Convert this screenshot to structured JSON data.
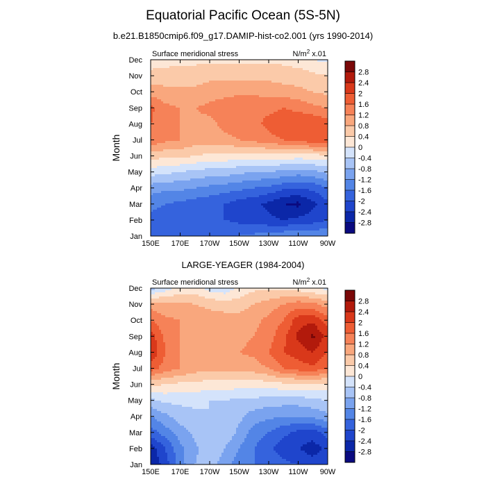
{
  "page": {
    "title": "Equatorial Pacific Ocean (5S-5N)"
  },
  "colorbar": {
    "levels": [
      -2.8,
      -2.4,
      -2,
      -1.6,
      -1.2,
      -0.8,
      -0.4,
      0,
      0.4,
      0.8,
      1.2,
      1.6,
      2,
      2.4,
      2.8
    ],
    "labels": [
      "-2.8",
      "-2.4",
      "-2",
      "-1.6",
      "-1.2",
      "-0.8",
      "-0.4",
      "0",
      "0.4",
      "0.8",
      "1.2",
      "1.6",
      "2",
      "2.4",
      "2.8"
    ],
    "colors": [
      "#0a0a80",
      "#0b27a8",
      "#1f45cc",
      "#3563dd",
      "#5385e6",
      "#7aa3ef",
      "#a8c4f6",
      "#d4e3fb",
      "#fde7d6",
      "#fbcaa9",
      "#f9a77d",
      "#f68258",
      "#ee5d34",
      "#d9381a",
      "#b21a0c",
      "#7a0808"
    ]
  },
  "chart_data": [
    {
      "type": "heatmap",
      "subtitle": "b.e21.B1850cmip6.f09_g17.DAMIP-hist-co2.001 (yrs 1990-2014)",
      "left_label": "Surface meridional stress",
      "right_label_main": "N/m",
      "right_label_sup": "2",
      "right_label_tail": " x.01",
      "ylabel": "Month",
      "x_ticks": [
        "150E",
        "170E",
        "170W",
        "150W",
        "130W",
        "110W",
        "90W"
      ],
      "y_ticks": [
        "Jan",
        "Feb",
        "Mar",
        "Apr",
        "May",
        "Jun",
        "Jul",
        "Aug",
        "Sep",
        "Oct",
        "Nov",
        "Dec"
      ],
      "grid": [
        [
          -1.6,
          -1.7,
          -1.7,
          -1.7,
          -1.6,
          -1.6,
          -1.6,
          -1.5,
          -1.4,
          -1.3,
          -1.2,
          -1.2,
          -1.3
        ],
        [
          -1.7,
          -1.8,
          -1.9,
          -1.9,
          -1.9,
          -2.0,
          -2.1,
          -2.2,
          -2.3,
          -2.4,
          -2.3,
          -2.2,
          -2.0
        ],
        [
          -1.5,
          -1.6,
          -1.7,
          -1.8,
          -1.9,
          -2.0,
          -2.2,
          -2.3,
          -2.5,
          -2.8,
          -2.9,
          -2.5,
          -2.1
        ],
        [
          -1.0,
          -1.1,
          -1.1,
          -1.2,
          -1.3,
          -1.4,
          -1.5,
          -1.6,
          -1.7,
          -1.9,
          -2.0,
          -1.9,
          -1.6
        ],
        [
          -0.2,
          -0.3,
          -0.4,
          -0.5,
          -0.6,
          -0.6,
          -0.7,
          -0.8,
          -0.8,
          -0.9,
          -1.0,
          -0.9,
          -0.7
        ],
        [
          0.6,
          0.5,
          0.5,
          0.4,
          0.3,
          0.3,
          0.2,
          0.2,
          0.2,
          0.2,
          0.2,
          0.2,
          0.3
        ],
        [
          1.5,
          1.3,
          1.2,
          1.0,
          1.0,
          1.1,
          1.2,
          1.3,
          1.5,
          1.6,
          1.7,
          1.9,
          2.0
        ],
        [
          1.6,
          1.4,
          1.2,
          1.1,
          1.1,
          1.3,
          1.4,
          1.5,
          1.7,
          1.8,
          1.9,
          2.0,
          1.8
        ],
        [
          1.7,
          1.3,
          1.2,
          1.2,
          1.3,
          1.5,
          1.6,
          1.6,
          1.5,
          1.6,
          1.5,
          1.3,
          1.2
        ],
        [
          1.0,
          0.9,
          0.9,
          0.9,
          1.0,
          1.0,
          1.1,
          1.1,
          1.0,
          1.0,
          0.9,
          0.8,
          0.7
        ],
        [
          0.6,
          0.6,
          0.6,
          0.6,
          0.7,
          0.7,
          0.7,
          0.7,
          0.7,
          0.6,
          0.6,
          0.5,
          0.4
        ],
        [
          0.1,
          0.2,
          0.3,
          0.3,
          0.3,
          0.3,
          0.3,
          0.3,
          0.3,
          0.3,
          0.2,
          0.0,
          -0.1
        ]
      ]
    },
    {
      "type": "heatmap",
      "subtitle": "LARGE-YEAGER (1984-2004)",
      "left_label": "Surface meridional stress",
      "right_label_main": "N/m",
      "right_label_sup": "2",
      "right_label_tail": " x.01",
      "ylabel": "Month",
      "x_ticks": [
        "150E",
        "170E",
        "170W",
        "150W",
        "130W",
        "110W",
        "90W"
      ],
      "y_ticks": [
        "Jan",
        "Feb",
        "Mar",
        "Apr",
        "May",
        "Jun",
        "Jul",
        "Aug",
        "Sep",
        "Oct",
        "Nov",
        "Dec"
      ],
      "grid": [
        [
          -2.8,
          -2.2,
          -1.4,
          -0.8,
          -0.6,
          -1.0,
          -1.4,
          -1.6,
          -1.8,
          -1.9,
          -2.0,
          -2.2,
          -2.0
        ],
        [
          -2.6,
          -2.0,
          -1.3,
          -0.9,
          -0.5,
          -0.8,
          -1.2,
          -1.6,
          -1.9,
          -2.2,
          -2.4,
          -2.6,
          -2.3
        ],
        [
          -1.8,
          -1.4,
          -1.0,
          -0.7,
          -0.4,
          -0.5,
          -0.9,
          -1.4,
          -1.6,
          -1.9,
          -2.1,
          -2.2,
          -1.8
        ],
        [
          -1.2,
          -0.9,
          -0.6,
          -0.5,
          -0.4,
          -0.5,
          -0.7,
          -1.0,
          -1.1,
          -1.2,
          -1.2,
          -1.1,
          -0.9
        ],
        [
          -0.5,
          -0.3,
          -0.3,
          -0.3,
          -0.4,
          -0.4,
          -0.5,
          -0.5,
          -0.6,
          -0.6,
          -0.6,
          -0.5,
          -0.4
        ],
        [
          0.5,
          0.4,
          0.3,
          0.3,
          0.2,
          0.2,
          0.2,
          0.2,
          0.2,
          0.3,
          0.3,
          0.3,
          0.3
        ],
        [
          1.8,
          1.4,
          1.2,
          1.0,
          0.9,
          0.9,
          1.0,
          1.0,
          1.2,
          1.6,
          1.8,
          1.9,
          1.6
        ],
        [
          2.4,
          1.6,
          1.2,
          1.1,
          1.0,
          1.1,
          1.2,
          1.3,
          1.6,
          2.0,
          2.2,
          2.4,
          2.0
        ],
        [
          2.2,
          1.5,
          1.2,
          1.1,
          1.0,
          1.0,
          1.1,
          1.2,
          1.4,
          1.9,
          2.5,
          2.9,
          2.2
        ],
        [
          1.6,
          1.3,
          1.2,
          1.1,
          1.0,
          1.0,
          1.0,
          1.1,
          1.3,
          1.6,
          2.2,
          2.3,
          1.8
        ],
        [
          1.0,
          0.9,
          0.9,
          0.8,
          0.7,
          0.6,
          0.6,
          0.8,
          1.0,
          1.2,
          1.4,
          1.3,
          1.0
        ],
        [
          -0.6,
          -0.2,
          0.1,
          0.2,
          -0.2,
          -0.3,
          0.1,
          0.3,
          0.3,
          0.3,
          0.2,
          0.0,
          -0.1
        ]
      ]
    }
  ]
}
